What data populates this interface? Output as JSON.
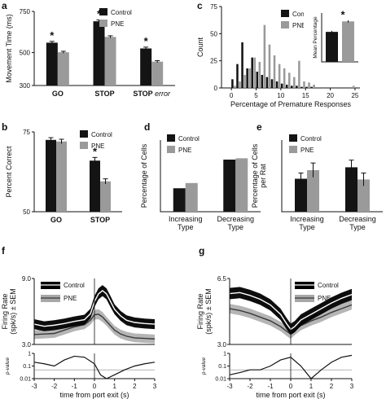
{
  "colors": {
    "control": "#141414",
    "pne": "#9a9a9a",
    "ci_control": "#000000",
    "ci_pne": "#a8a8a8"
  },
  "chart_data": [
    {
      "id": "a",
      "panel_label": "a",
      "type": "bar",
      "ylabel": "Movement Time (ms)",
      "ylim": [
        300,
        750
      ],
      "yticks": [
        300,
        500,
        750
      ],
      "categories": [
        "GO",
        "STOP",
        "STOP error"
      ],
      "category_labels": [
        {
          "main": "GO",
          "italic": ""
        },
        {
          "main": "STOP",
          "italic": ""
        },
        {
          "main": "STOP ",
          "italic": "error"
        }
      ],
      "series": [
        {
          "name": "Control",
          "color": "control",
          "values": [
            560,
            690,
            525
          ],
          "errors": [
            8,
            8,
            8
          ]
        },
        {
          "name": "PNE",
          "color": "pne",
          "values": [
            502,
            595,
            445
          ],
          "errors": [
            6,
            7,
            6
          ]
        }
      ],
      "significance": [
        "*",
        "*",
        "*"
      ],
      "legend": [
        "Control",
        "PNE"
      ]
    },
    {
      "id": "c",
      "panel_label": "c",
      "type": "bar",
      "xlabel": "Percentage of Premature Responses",
      "ylabel": "Count",
      "xlim": [
        -2,
        26
      ],
      "xticks": [
        0,
        5,
        10,
        15,
        20,
        25
      ],
      "ylim": [
        0,
        75
      ],
      "yticks": [
        0,
        25,
        50,
        75
      ],
      "series": [
        {
          "name": "Control",
          "color": "control",
          "x": [
            0,
            1,
            2,
            3,
            4,
            5,
            6,
            7,
            8,
            9,
            10,
            11,
            12,
            13,
            14,
            15,
            16
          ],
          "values": [
            8,
            22,
            42,
            18,
            28,
            15,
            12,
            10,
            8,
            6,
            4,
            3,
            2,
            2,
            1,
            1,
            1
          ]
        },
        {
          "name": "PNE",
          "color": "pne",
          "x": [
            0.5,
            1.5,
            2.5,
            3.5,
            4.5,
            5.5,
            6.5,
            7.5,
            8.5,
            9.5,
            10.5,
            11.5,
            12.5,
            13.5,
            14.5,
            15.5,
            16.5,
            24.5
          ],
          "values": [
            2,
            6,
            12,
            18,
            28,
            24,
            58,
            40,
            30,
            22,
            18,
            14,
            10,
            25,
            6,
            5,
            3,
            2
          ]
        }
      ],
      "legend": [
        "Control",
        "PNE"
      ],
      "inset": {
        "ylabel": "Mean Percentage",
        "series": [
          {
            "name": "Control",
            "color": "control",
            "value": 4.3,
            "error": 0.15
          },
          {
            "name": "PNE",
            "color": "pne",
            "value": 5.8,
            "error": 0.15
          }
        ],
        "ylim": [
          0,
          7
        ],
        "significance": "*"
      }
    },
    {
      "id": "b",
      "panel_label": "b",
      "type": "bar",
      "ylabel": "Percent Correct",
      "ylim": [
        50,
        75
      ],
      "yticks": [
        50,
        75
      ],
      "categories": [
        "GO",
        "STOP"
      ],
      "series": [
        {
          "name": "Control",
          "color": "control",
          "values": [
            72.5,
            66
          ],
          "errors": [
            0.7,
            1.0
          ]
        },
        {
          "name": "PNE",
          "color": "pne",
          "values": [
            72,
            59.5
          ],
          "errors": [
            0.7,
            0.8
          ]
        }
      ],
      "significance": [
        "",
        "*"
      ],
      "legend": [
        "Control",
        "PNE"
      ]
    },
    {
      "id": "d",
      "panel_label": "d",
      "type": "bar",
      "ylabel": "Percentage of Cells",
      "categories": [
        "Increasing Type",
        "Decreasing Type"
      ],
      "category_lines": [
        [
          "Increasing",
          "Type"
        ],
        [
          "Decreasing",
          "Type"
        ]
      ],
      "ylim": [
        0,
        55
      ],
      "series": [
        {
          "name": "Control",
          "color": "control",
          "values": [
            18,
            40
          ]
        },
        {
          "name": "PNE",
          "color": "pne",
          "values": [
            22,
            41
          ]
        }
      ],
      "legend": [
        "Control",
        "PNE"
      ]
    },
    {
      "id": "e",
      "panel_label": "e",
      "type": "bar",
      "ylabel": "Percentage of Cells per Rat",
      "ylabel_lines": [
        "Percentage of Cells",
        "per Rat"
      ],
      "categories": [
        "Increasing Type",
        "Decreasing Type"
      ],
      "category_lines": [
        [
          "Increasing",
          "Type"
        ],
        [
          "Decreasing",
          "Type"
        ]
      ],
      "ylim": [
        0,
        50
      ],
      "series": [
        {
          "name": "Control",
          "color": "control",
          "values": [
            23,
            31
          ],
          "errors": [
            4,
            5
          ]
        },
        {
          "name": "PNE",
          "color": "pne",
          "values": [
            29,
            22.5
          ],
          "errors": [
            5,
            4.5
          ]
        }
      ],
      "legend": [
        "Control",
        "PNE"
      ]
    },
    {
      "id": "f",
      "panel_label": "f",
      "type": "line",
      "ylabel": "Firing Rate (spk/s) ± SEM",
      "ylabel_lines": [
        "Firing Rate",
        "(spk/s) ± SEM"
      ],
      "xlabel": "time from port exit (s)",
      "xlim": [
        -3,
        3
      ],
      "xticks": [
        -3,
        -2,
        -1,
        0,
        1,
        2,
        3
      ],
      "ylim": [
        3.0,
        9.0
      ],
      "yticks": [
        3.0,
        9.0
      ],
      "ytick_labels": [
        "3.0",
        "9.0"
      ],
      "x": [
        -3,
        -2.5,
        -2,
        -1.5,
        -1,
        -0.5,
        -0.2,
        0,
        0.2,
        0.4,
        0.6,
        0.8,
        1,
        1.3,
        1.6,
        2,
        2.5,
        3
      ],
      "series": [
        {
          "name": "Control",
          "color": "control",
          "ci_color": "ci_control",
          "values": [
            4.85,
            4.65,
            4.75,
            4.9,
            5.1,
            5.25,
            5.8,
            6.9,
            7.6,
            7.9,
            7.6,
            6.9,
            6.2,
            5.6,
            5.2,
            5.0,
            4.9,
            4.85
          ],
          "sem": [
            0.45,
            0.45,
            0.45,
            0.45,
            0.45,
            0.45,
            0.45,
            0.5,
            0.5,
            0.5,
            0.5,
            0.5,
            0.45,
            0.45,
            0.45,
            0.45,
            0.45,
            0.45
          ]
        },
        {
          "name": "PNE",
          "color": "pne",
          "ci_color": "ci_pne",
          "values": [
            3.9,
            3.95,
            4.0,
            4.3,
            4.6,
            4.8,
            5.2,
            5.7,
            5.75,
            5.5,
            5.1,
            4.7,
            4.3,
            3.95,
            3.75,
            3.6,
            3.55,
            3.5
          ],
          "sem": [
            0.4,
            0.4,
            0.4,
            0.4,
            0.4,
            0.4,
            0.4,
            0.45,
            0.45,
            0.45,
            0.4,
            0.4,
            0.4,
            0.4,
            0.4,
            0.4,
            0.4,
            0.4
          ]
        }
      ],
      "legend": [
        "Control",
        "PNE"
      ],
      "pvalue": {
        "ylabel": "p-value",
        "yticks": [
          0.01,
          0.1,
          1
        ],
        "ytick_labels": [
          "0.01",
          "0.1",
          "1"
        ],
        "threshold": 0.05,
        "x": [
          -3,
          -2.5,
          -2,
          -1.5,
          -1,
          -0.5,
          0,
          0.3,
          0.6,
          1,
          1.5,
          2,
          2.5,
          3
        ],
        "values": [
          0.2,
          0.15,
          0.1,
          0.3,
          0.6,
          0.5,
          0.15,
          0.02,
          0.01,
          0.02,
          0.05,
          0.1,
          0.15,
          0.2
        ]
      }
    },
    {
      "id": "g",
      "panel_label": "g",
      "type": "line",
      "ylabel": "Firing Rate (spk/s) ± SEM",
      "ylabel_lines": [
        "Firing Rate",
        "(spk/s) ± SEM"
      ],
      "xlabel": "time from port exit (s)",
      "xlim": [
        -3,
        3
      ],
      "xticks": [
        -3,
        -2,
        -1,
        0,
        1,
        2,
        3
      ],
      "ylim": [
        3.0,
        6.5
      ],
      "yticks": [
        3.0,
        6.5
      ],
      "ytick_labels": [
        "3.0",
        "6.5"
      ],
      "x": [
        -3,
        -2.5,
        -2,
        -1.5,
        -1,
        -0.5,
        -0.2,
        0,
        0.2,
        0.5,
        1,
        1.5,
        2,
        2.5,
        3
      ],
      "series": [
        {
          "name": "Control",
          "color": "control",
          "ci_color": "ci_control",
          "values": [
            5.7,
            5.75,
            5.6,
            5.4,
            5.1,
            4.6,
            4.1,
            3.8,
            3.95,
            4.3,
            4.6,
            4.9,
            5.2,
            5.45,
            5.65
          ],
          "sem": [
            0.3,
            0.3,
            0.3,
            0.3,
            0.3,
            0.3,
            0.3,
            0.3,
            0.3,
            0.3,
            0.3,
            0.3,
            0.3,
            0.3,
            0.3
          ]
        },
        {
          "name": "PNE",
          "color": "pne",
          "ci_color": "ci_pne",
          "values": [
            4.9,
            4.8,
            4.65,
            4.45,
            4.25,
            3.95,
            3.7,
            3.55,
            3.75,
            4.0,
            4.25,
            4.45,
            4.7,
            4.9,
            5.1
          ],
          "sem": [
            0.25,
            0.25,
            0.25,
            0.25,
            0.25,
            0.25,
            0.25,
            0.25,
            0.25,
            0.25,
            0.25,
            0.25,
            0.25,
            0.25,
            0.25
          ]
        }
      ],
      "legend": [
        "Control",
        "PNE"
      ],
      "pvalue": {
        "ylabel": "p-value",
        "yticks": [
          0.01,
          0.1,
          1
        ],
        "ytick_labels": [
          "0.01",
          "0.1",
          "1"
        ],
        "threshold": 0.05,
        "x": [
          -3,
          -2.5,
          -2,
          -1.5,
          -1,
          -0.5,
          0,
          0.5,
          1,
          1.5,
          2,
          2.5,
          3
        ],
        "values": [
          0.02,
          0.03,
          0.05,
          0.05,
          0.1,
          0.3,
          0.5,
          0.1,
          0.01,
          0.05,
          0.2,
          0.5,
          0.7
        ]
      }
    }
  ]
}
